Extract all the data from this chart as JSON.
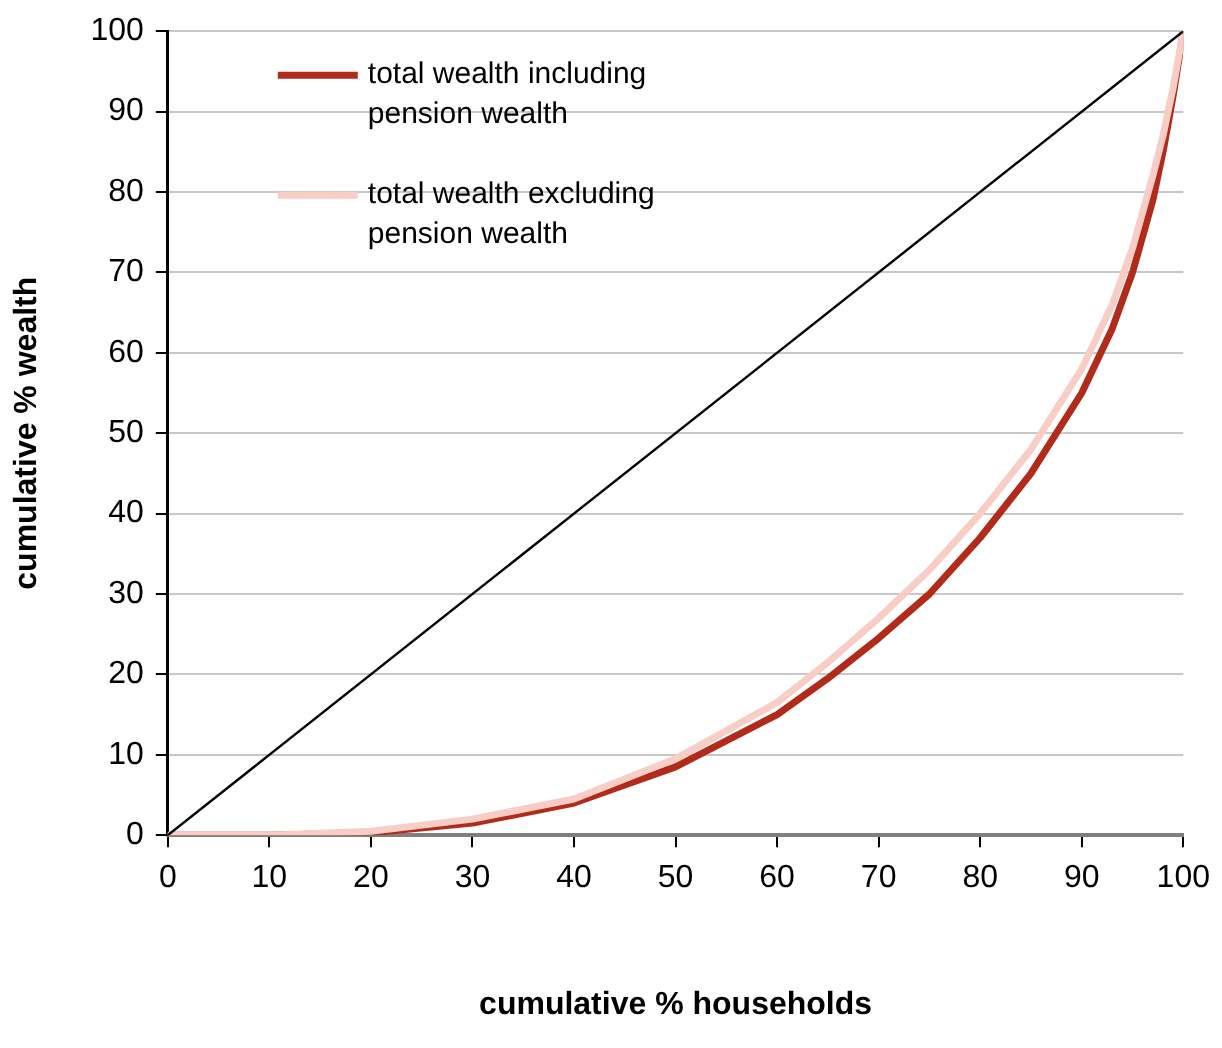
{
  "chart_data": {
    "type": "line",
    "xlabel": "cumulative % households",
    "ylabel": "cumulative % wealth",
    "xlim": [
      0,
      100
    ],
    "xticks": [
      0,
      10,
      20,
      30,
      40,
      50,
      60,
      70,
      80,
      90,
      100
    ],
    "ylim": [
      0,
      100
    ],
    "yticks": [
      0,
      10,
      20,
      30,
      40,
      50,
      60,
      70,
      80,
      90,
      100
    ],
    "grid": "y",
    "legend": "top left",
    "marker": "none",
    "series": [
      {
        "name": "total wealth including pension wealth",
        "color": "#b22a1a",
        "x": [
          0,
          10,
          20,
          30,
          40,
          50,
          60,
          65,
          70,
          75,
          80,
          85,
          90,
          93,
          95,
          97,
          98,
          99,
          100
        ],
        "values": [
          0,
          0,
          0.3,
          1.5,
          4,
          8.5,
          15,
          19.5,
          24.5,
          30,
          37,
          45,
          55,
          63,
          70,
          79,
          85,
          92,
          100
        ]
      },
      {
        "name": "total wealth excluding pension wealth",
        "color": "#f8cdc6",
        "x": [
          0,
          10,
          20,
          30,
          40,
          50,
          60,
          65,
          70,
          75,
          80,
          85,
          90,
          93,
          95,
          97,
          98,
          99,
          100
        ],
        "values": [
          0,
          0,
          0.5,
          2,
          4.5,
          9.5,
          16.5,
          21.5,
          27,
          33,
          40,
          48,
          58,
          66,
          73,
          82,
          87,
          93,
          100
        ]
      },
      {
        "color": "#000000",
        "x": [
          0,
          100
        ],
        "values": [
          0,
          100
        ]
      }
    ]
  }
}
